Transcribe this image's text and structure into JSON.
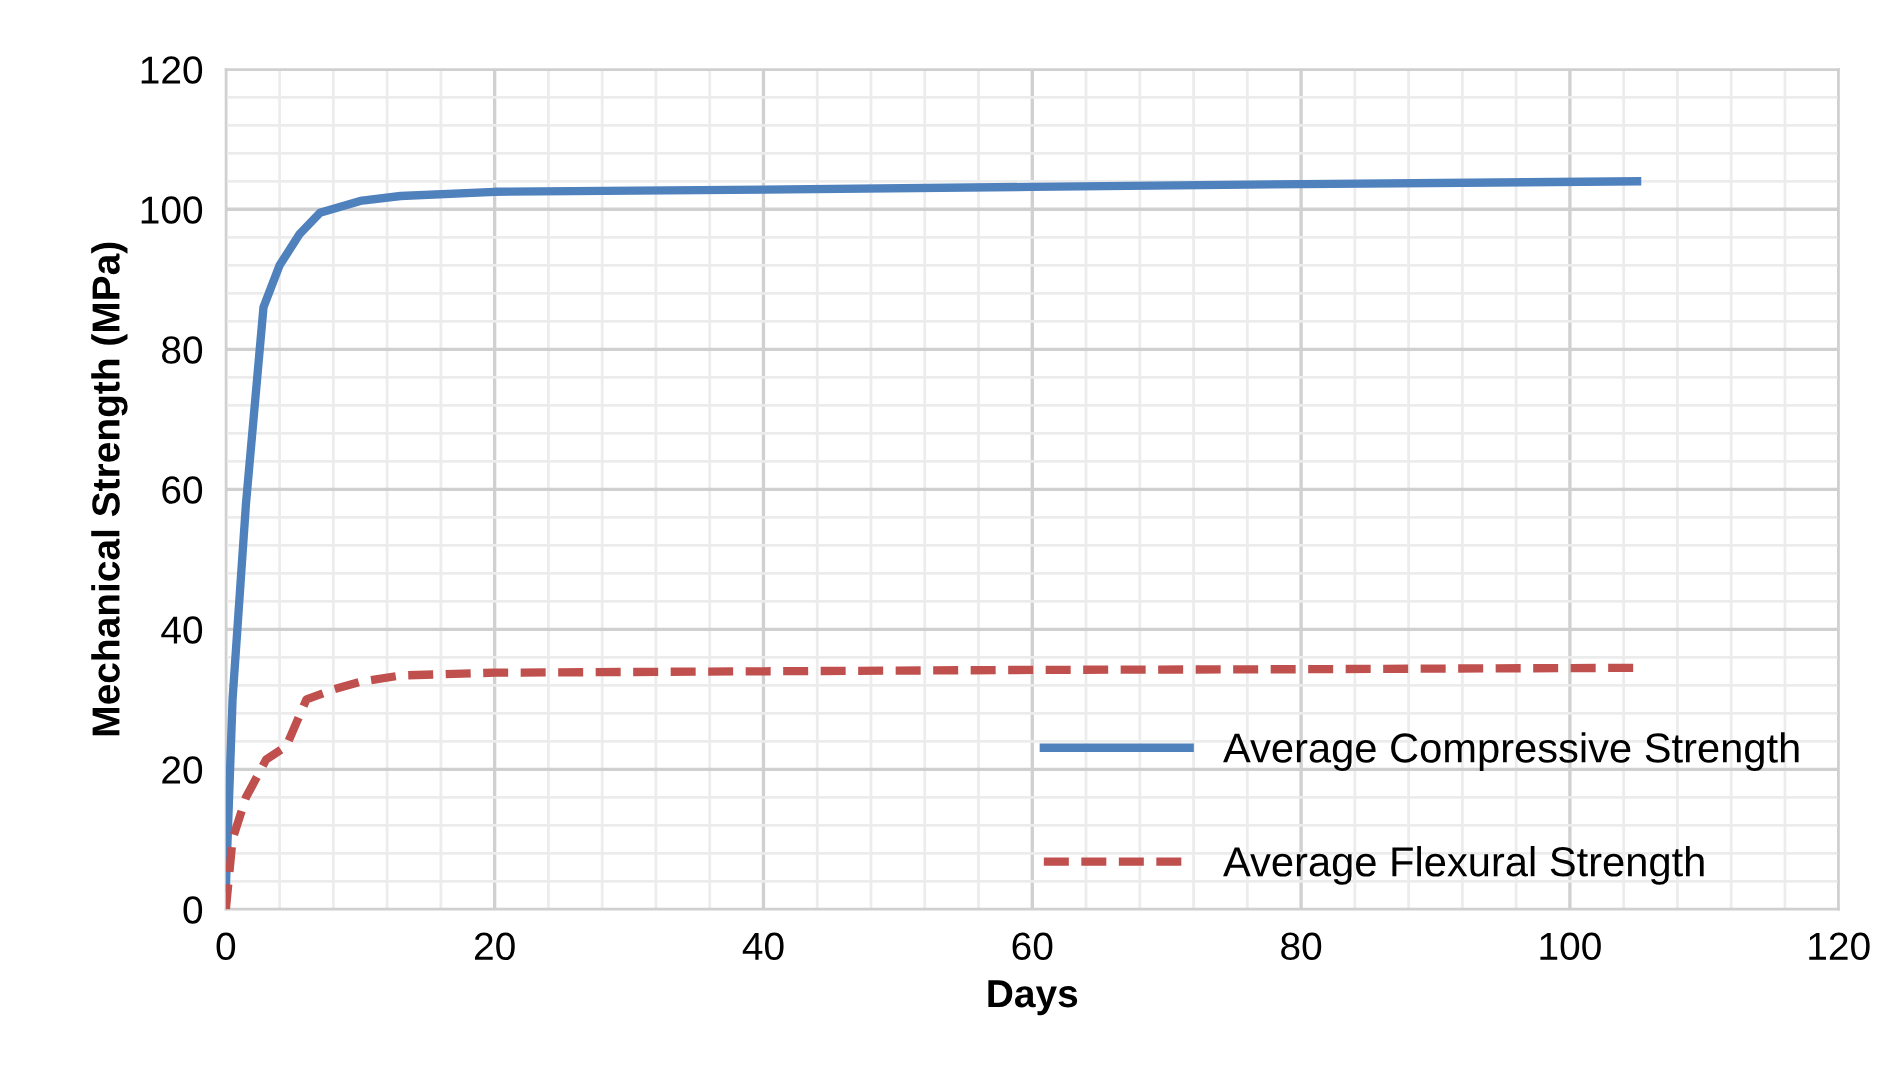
{
  "chart_data": {
    "type": "line",
    "xlabel": "Days",
    "ylabel": "Mechanical Strength (MPa)",
    "xlim": [
      0,
      120
    ],
    "xticks": [
      0,
      20,
      40,
      60,
      80,
      100,
      120
    ],
    "ylim": [
      0,
      120
    ],
    "yticks": [
      0,
      20,
      40,
      60,
      80,
      100,
      120
    ],
    "grid": true,
    "legend": "right",
    "series": [
      {
        "name": "Average Compressive Strength",
        "color": "#4f81bd",
        "line_style": "solid",
        "x": [
          0,
          0.5,
          1.5,
          2.8,
          4,
          5.5,
          7,
          10,
          13,
          20,
          40,
          60,
          80,
          105
        ],
        "values": [
          3,
          30,
          58,
          86,
          92,
          96.5,
          99.5,
          101.2,
          101.9,
          102.5,
          102.8,
          103.2,
          103.6,
          104
        ]
      },
      {
        "name": "Average Flexural Strength",
        "color": "#c0504d",
        "line_style": "dashed",
        "x": [
          0,
          0.5,
          1.5,
          3,
          4.5,
          6,
          8,
          10,
          13,
          20,
          40,
          60,
          80,
          105
        ],
        "values": [
          0,
          10,
          16,
          21.4,
          23.3,
          30,
          31.4,
          32.5,
          33.4,
          33.8,
          34,
          34.2,
          34.3,
          34.5
        ]
      }
    ]
  }
}
